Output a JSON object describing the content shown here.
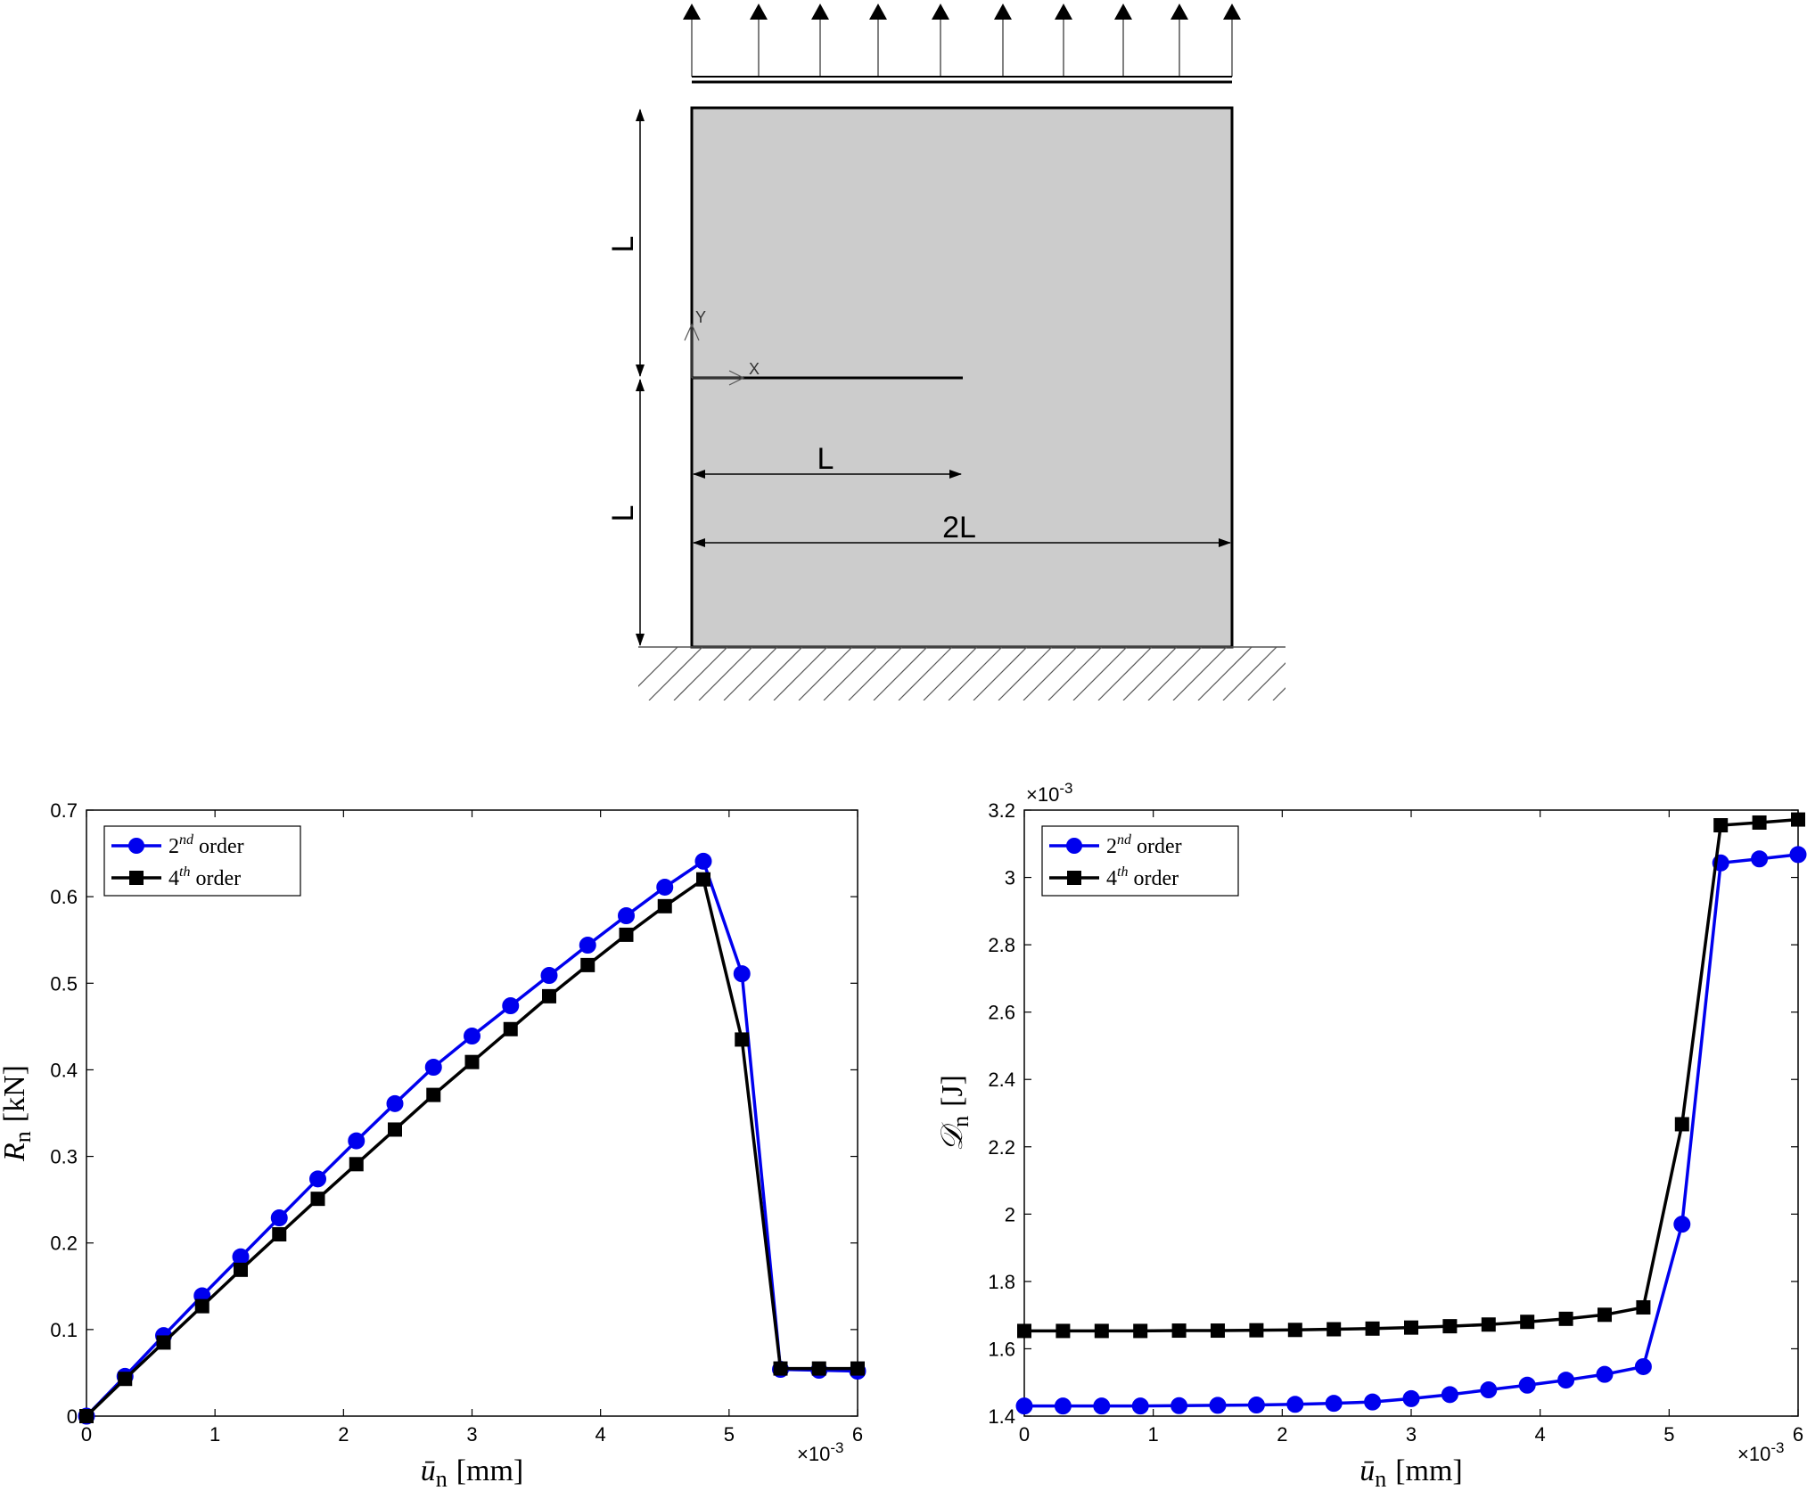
{
  "diagram": {
    "label_L_upper": "L",
    "label_L_lower": "L",
    "label_L_horizontal": "L",
    "label_2L": "2L",
    "axis_x": "X",
    "axis_y": "Y"
  },
  "chart_data": [
    {
      "type": "line",
      "xlabel_main": "ū",
      "xlabel_sub": "n",
      "xlabel_unit": "[mm]",
      "ylabel_main": "R",
      "ylabel_sub": "n",
      "ylabel_unit": "[kN]",
      "x_exponent": "×10",
      "x_exponent_power": "-3",
      "xlim": [
        0,
        6
      ],
      "ylim": [
        0,
        0.7
      ],
      "xticks": [
        "0",
        "1",
        "2",
        "3",
        "4",
        "5",
        "6"
      ],
      "yticks": [
        "0",
        "0.1",
        "0.2",
        "0.3",
        "0.4",
        "0.5",
        "0.6",
        "0.7"
      ],
      "legend_position": "top-left",
      "series": [
        {
          "name_base": "2",
          "name_sup": "nd",
          "name_rest": " order",
          "color": "#0000ee",
          "marker": "circle",
          "x": [
            0,
            0.3,
            0.6,
            0.9,
            1.2,
            1.5,
            1.8,
            2.1,
            2.4,
            2.7,
            3.0,
            3.3,
            3.6,
            3.9,
            4.2,
            4.5,
            4.8,
            5.1,
            5.4,
            5.7,
            6.0
          ],
          "y": [
            0.0,
            0.046,
            0.093,
            0.139,
            0.184,
            0.229,
            0.274,
            0.318,
            0.361,
            0.403,
            0.439,
            0.474,
            0.509,
            0.544,
            0.578,
            0.611,
            0.641,
            0.511,
            0.054,
            0.053,
            0.052
          ]
        },
        {
          "name_base": "4",
          "name_sup": "th",
          "name_rest": " order",
          "color": "#000000",
          "marker": "square",
          "x": [
            0,
            0.3,
            0.6,
            0.9,
            1.2,
            1.5,
            1.8,
            2.1,
            2.4,
            2.7,
            3.0,
            3.3,
            3.6,
            3.9,
            4.2,
            4.5,
            4.8,
            5.1,
            5.4,
            5.7,
            6.0
          ],
          "y": [
            0.0,
            0.043,
            0.085,
            0.127,
            0.169,
            0.21,
            0.251,
            0.291,
            0.331,
            0.371,
            0.409,
            0.447,
            0.485,
            0.521,
            0.556,
            0.589,
            0.62,
            0.435,
            0.055,
            0.055,
            0.055
          ]
        }
      ]
    },
    {
      "type": "line",
      "xlabel_main": "ū",
      "xlabel_sub": "n",
      "xlabel_unit": "[mm]",
      "ylabel_main": "𝒟",
      "ylabel_sub": "n",
      "ylabel_unit": "[J]",
      "x_exponent": "×10",
      "x_exponent_power": "-3",
      "y_exponent": "×10",
      "y_exponent_power": "-3",
      "xlim": [
        0,
        6
      ],
      "ylim": [
        1.4,
        3.2
      ],
      "xticks": [
        "0",
        "1",
        "2",
        "3",
        "4",
        "5",
        "6"
      ],
      "yticks": [
        "1.4",
        "1.6",
        "1.8",
        "2",
        "2.2",
        "2.4",
        "2.6",
        "2.8",
        "3",
        "3.2"
      ],
      "legend_position": "top-left",
      "series": [
        {
          "name_base": "2",
          "name_sup": "nd",
          "name_rest": " order",
          "color": "#0000ee",
          "marker": "circle",
          "x": [
            0,
            0.3,
            0.6,
            0.9,
            1.2,
            1.5,
            1.8,
            2.1,
            2.4,
            2.7,
            3.0,
            3.3,
            3.6,
            3.9,
            4.2,
            4.5,
            4.8,
            5.1,
            5.4,
            5.7,
            6.0
          ],
          "y": [
            1.43,
            1.43,
            1.43,
            1.43,
            1.431,
            1.432,
            1.433,
            1.435,
            1.438,
            1.442,
            1.452,
            1.464,
            1.478,
            1.492,
            1.507,
            1.524,
            1.547,
            1.97,
            3.043,
            3.055,
            3.068
          ]
        },
        {
          "name_base": "4",
          "name_sup": "th",
          "name_rest": " order",
          "color": "#000000",
          "marker": "square",
          "x": [
            0,
            0.3,
            0.6,
            0.9,
            1.2,
            1.5,
            1.8,
            2.1,
            2.4,
            2.7,
            3.0,
            3.3,
            3.6,
            3.9,
            4.2,
            4.5,
            4.8,
            5.1,
            5.4,
            5.7,
            6.0
          ],
          "y": [
            1.653,
            1.653,
            1.653,
            1.653,
            1.654,
            1.654,
            1.655,
            1.656,
            1.658,
            1.66,
            1.663,
            1.667,
            1.672,
            1.68,
            1.689,
            1.701,
            1.723,
            2.267,
            3.155,
            3.163,
            3.172
          ]
        }
      ]
    }
  ]
}
